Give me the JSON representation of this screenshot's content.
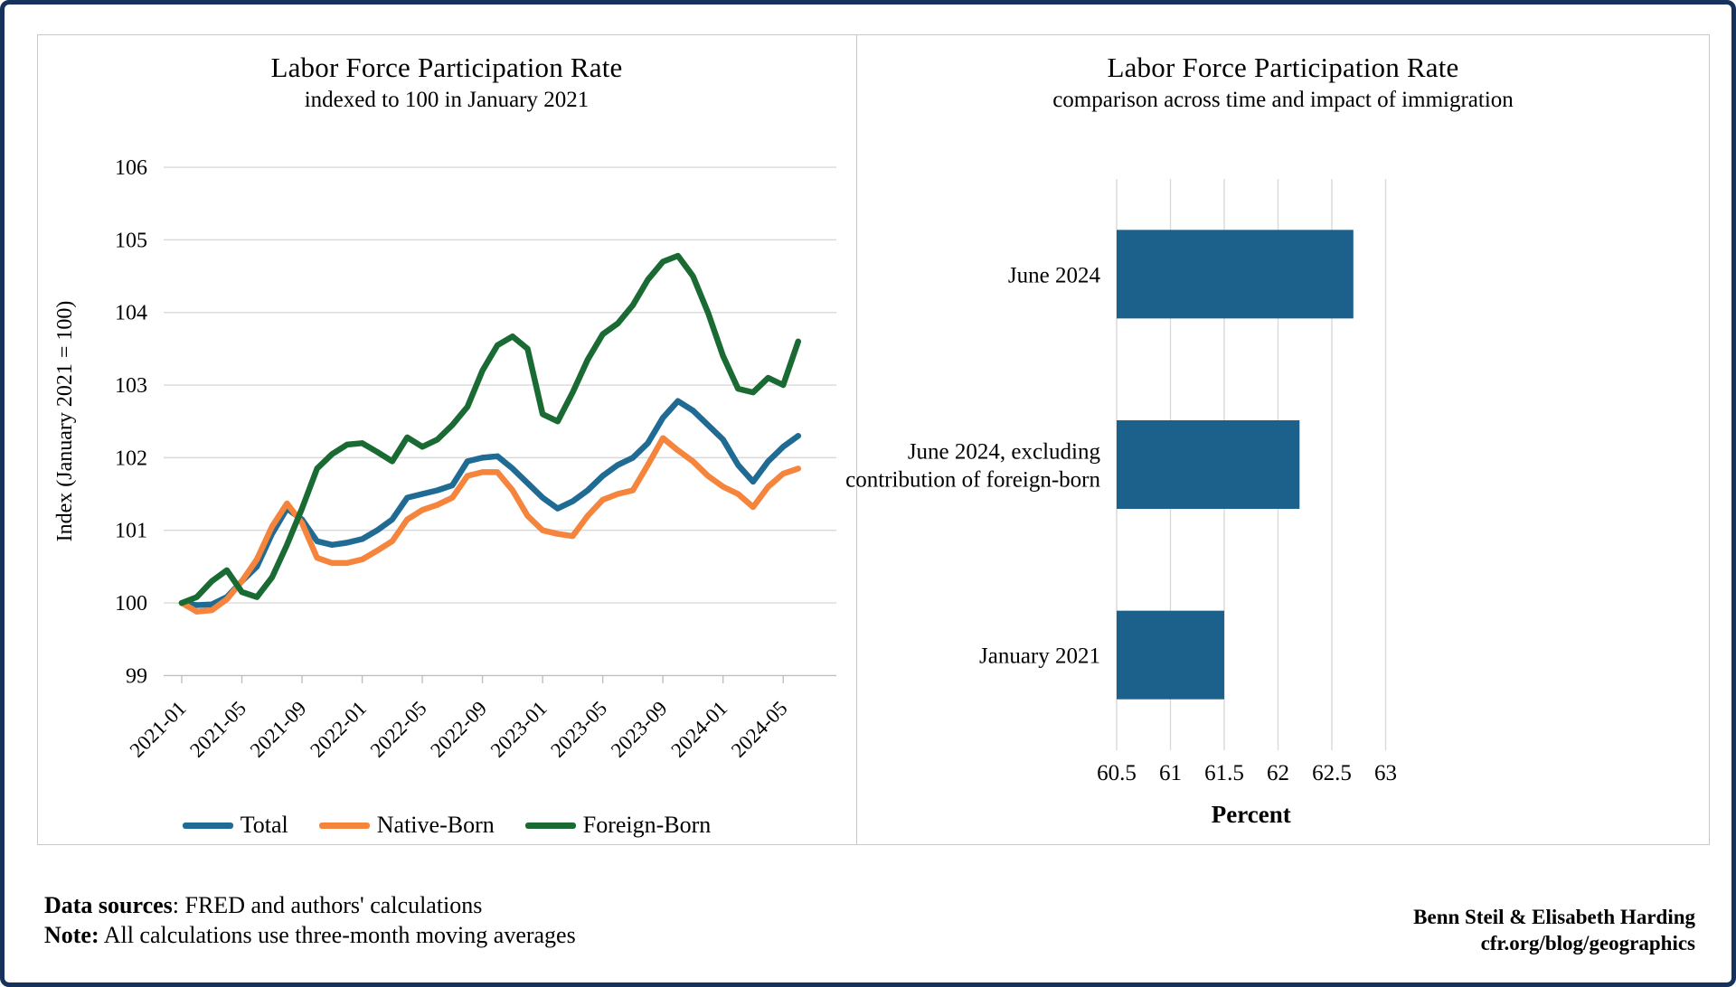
{
  "footer": {
    "sources_label": "Data sources",
    "sources_text": ": FRED and authors' calculations",
    "note_label": "Note:",
    "note_text": " All calculations use three-month moving averages"
  },
  "credits": {
    "line1": "Benn Steil & Elisabeth Harding",
    "line2": "cfr.org/blog/geographics"
  },
  "colors": {
    "total": "#1f6b93",
    "native_born": "#f5853d",
    "foreign_born": "#1a6b33",
    "bar": "#1c618c",
    "gridline": "#d9d9d9",
    "axis": "#bfbfbf",
    "outer_border": "#16325c",
    "panel_border": "#c9c9c9"
  },
  "chart_data": [
    {
      "type": "line",
      "title": "Labor Force Participation Rate",
      "subtitle": "indexed to 100 in January 2021",
      "ylabel": "Index (January 2021 = 100)",
      "ylim": [
        99,
        106
      ],
      "yticks": [
        99,
        100,
        101,
        102,
        103,
        104,
        105,
        106
      ],
      "grid": "horizontal",
      "legend_position": "bottom",
      "x": [
        "2021-01",
        "2021-02",
        "2021-03",
        "2021-04",
        "2021-05",
        "2021-06",
        "2021-07",
        "2021-08",
        "2021-09",
        "2021-10",
        "2021-11",
        "2021-12",
        "2022-01",
        "2022-02",
        "2022-03",
        "2022-04",
        "2022-05",
        "2022-06",
        "2022-07",
        "2022-08",
        "2022-09",
        "2022-10",
        "2022-11",
        "2022-12",
        "2023-01",
        "2023-02",
        "2023-03",
        "2023-04",
        "2023-05",
        "2023-06",
        "2023-07",
        "2023-08",
        "2023-09",
        "2023-10",
        "2023-11",
        "2023-12",
        "2024-01",
        "2024-02",
        "2024-03",
        "2024-04",
        "2024-05",
        "2024-06"
      ],
      "x_tick_labels": [
        "2021-01",
        "2021-05",
        "2021-09",
        "2022-01",
        "2022-05",
        "2022-09",
        "2023-01",
        "2023-05",
        "2023-09",
        "2024-01",
        "2024-05"
      ],
      "series": [
        {
          "name": "Total",
          "color": "#1f6b93",
          "values": [
            100,
            99.97,
            99.98,
            100.08,
            100.3,
            100.5,
            100.95,
            101.3,
            101.15,
            100.85,
            100.8,
            100.83,
            100.88,
            101.0,
            101.15,
            101.45,
            101.5,
            101.55,
            101.62,
            101.95,
            102.0,
            102.02,
            101.85,
            101.65,
            101.45,
            101.3,
            101.4,
            101.55,
            101.75,
            101.9,
            102.0,
            102.2,
            102.55,
            102.78,
            102.65,
            102.45,
            102.25,
            101.9,
            101.67,
            101.95,
            102.15,
            102.3
          ]
        },
        {
          "name": "Native-Born",
          "color": "#f5853d",
          "values": [
            100,
            99.88,
            99.9,
            100.05,
            100.3,
            100.6,
            101.05,
            101.37,
            101.1,
            100.62,
            100.55,
            100.55,
            100.6,
            100.72,
            100.85,
            101.15,
            101.28,
            101.35,
            101.45,
            101.75,
            101.8,
            101.8,
            101.55,
            101.2,
            101.0,
            100.95,
            100.92,
            101.2,
            101.42,
            101.5,
            101.55,
            101.9,
            102.27,
            102.1,
            101.95,
            101.75,
            101.6,
            101.5,
            101.32,
            101.6,
            101.78,
            101.85
          ]
        },
        {
          "name": "Foreign-Born",
          "color": "#1a6b33",
          "values": [
            100,
            100.08,
            100.3,
            100.45,
            100.15,
            100.08,
            100.35,
            100.8,
            101.3,
            101.85,
            102.05,
            102.18,
            102.2,
            102.08,
            101.95,
            102.28,
            102.15,
            102.25,
            102.45,
            102.7,
            103.2,
            103.55,
            103.67,
            103.5,
            102.6,
            102.5,
            102.9,
            103.35,
            103.7,
            103.85,
            104.1,
            104.45,
            104.7,
            104.78,
            104.5,
            104.0,
            103.4,
            102.95,
            102.9,
            103.1,
            103.0,
            103.6
          ]
        }
      ]
    },
    {
      "type": "bar",
      "title": "Labor Force Participation Rate",
      "subtitle": "comparison across time and impact of immigration",
      "orientation": "horizontal",
      "categories": [
        "June 2024",
        "June 2024, excluding contribution of foreign-born",
        "January 2021"
      ],
      "category_lines": [
        [
          "June 2024"
        ],
        [
          "June 2024, excluding",
          "contribution of foreign-born"
        ],
        [
          "January 2021"
        ]
      ],
      "values": [
        62.7,
        62.2,
        61.5
      ],
      "xlabel": "Percent",
      "xlim": [
        60.5,
        63
      ],
      "xticks": [
        60.5,
        61,
        61.5,
        62,
        62.5,
        63
      ],
      "bar_color": "#1c618c",
      "grid": "vertical"
    }
  ]
}
